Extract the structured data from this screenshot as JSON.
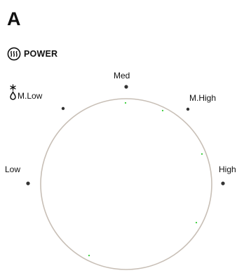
{
  "header": {
    "section_letter": "A"
  },
  "power": {
    "icon": "power-heat-icon",
    "label": "POWER"
  },
  "dial": {
    "labels": {
      "med": "Med",
      "m_low": "M.Low",
      "m_high": "M.High",
      "low": "Low",
      "high": "High"
    },
    "m_low_icon": "snowflake-drop-icon",
    "colors": {
      "ring": "#c8bfb6",
      "marker": "#333333",
      "indicator": "#33cc33"
    }
  }
}
